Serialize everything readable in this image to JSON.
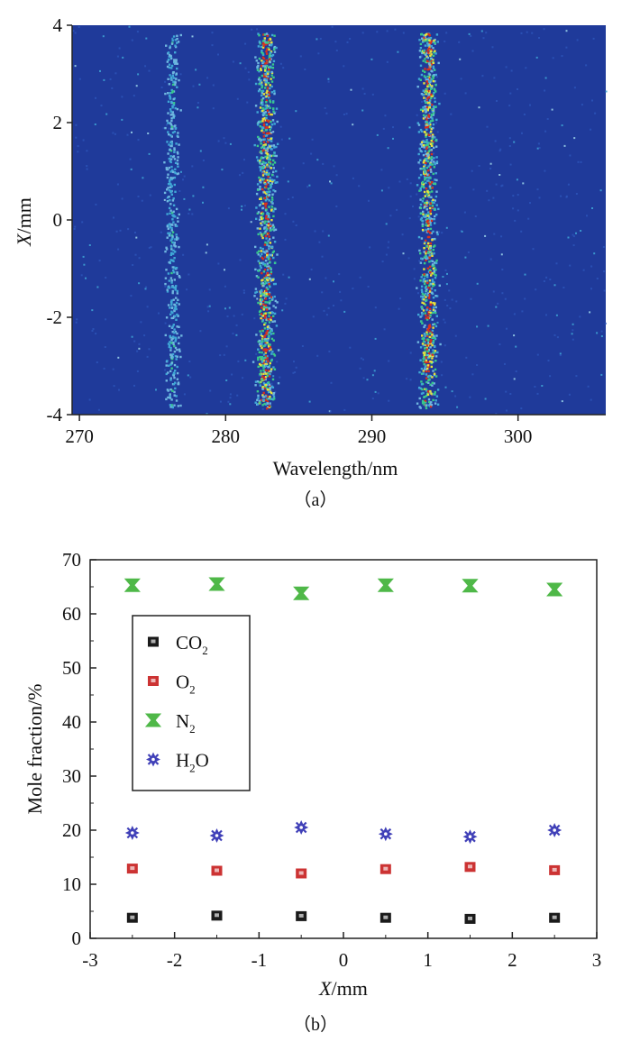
{
  "chart_data": [
    {
      "type": "heatmap",
      "panel_label": "（a）",
      "xlabel": "Wavelength/nm",
      "ylabel_var": "X",
      "ylabel_unit": "/mm",
      "xlim": [
        269.5,
        306
      ],
      "ylim": [
        -4,
        4
      ],
      "xticks": [
        270,
        280,
        290,
        300
      ],
      "yticks": [
        -4,
        -2,
        0,
        2,
        4
      ],
      "colors": {
        "background": "#1f3a9a",
        "low": "#3fa7d6",
        "mid": "#38c98a",
        "high": "#e8e23a",
        "peak": "#d7301f"
      },
      "lines": [
        {
          "wavelength": 276.3,
          "intensity": 0.35
        },
        {
          "wavelength": 282.7,
          "intensity": 1.0
        },
        {
          "wavelength": 293.8,
          "intensity": 0.95
        }
      ]
    },
    {
      "type": "scatter",
      "panel_label": "（b）",
      "xlabel_var": "X",
      "xlabel_unit": "/mm",
      "ylabel": "Mole fraction/%",
      "xlim": [
        -3,
        3
      ],
      "ylim": [
        0,
        70
      ],
      "xticks": [
        -3,
        -2,
        -1,
        0,
        1,
        2,
        3
      ],
      "yticks": [
        0,
        10,
        20,
        30,
        40,
        50,
        60,
        70
      ],
      "x": [
        -2.5,
        -1.5,
        -0.5,
        0.5,
        1.5,
        2.5
      ],
      "series": [
        {
          "name": "CO",
          "sub": "2",
          "marker": "square",
          "color": "#1a1a1a",
          "values": [
            3.8,
            4.2,
            4.1,
            3.8,
            3.6,
            3.8
          ]
        },
        {
          "name": "O",
          "sub": "2",
          "marker": "square",
          "color": "#cc3333",
          "values": [
            12.9,
            12.5,
            12.0,
            12.8,
            13.2,
            12.6
          ]
        },
        {
          "name": "N",
          "sub": "2",
          "marker": "hourglass",
          "color": "#4fb848",
          "values": [
            65.3,
            65.5,
            63.8,
            65.3,
            65.2,
            64.5
          ]
        },
        {
          "name": "H",
          "sub": "2",
          "suffix": "O",
          "marker": "star",
          "color": "#4040b8",
          "values": [
            19.5,
            19.0,
            20.5,
            19.3,
            18.8,
            20.0
          ]
        }
      ]
    }
  ]
}
